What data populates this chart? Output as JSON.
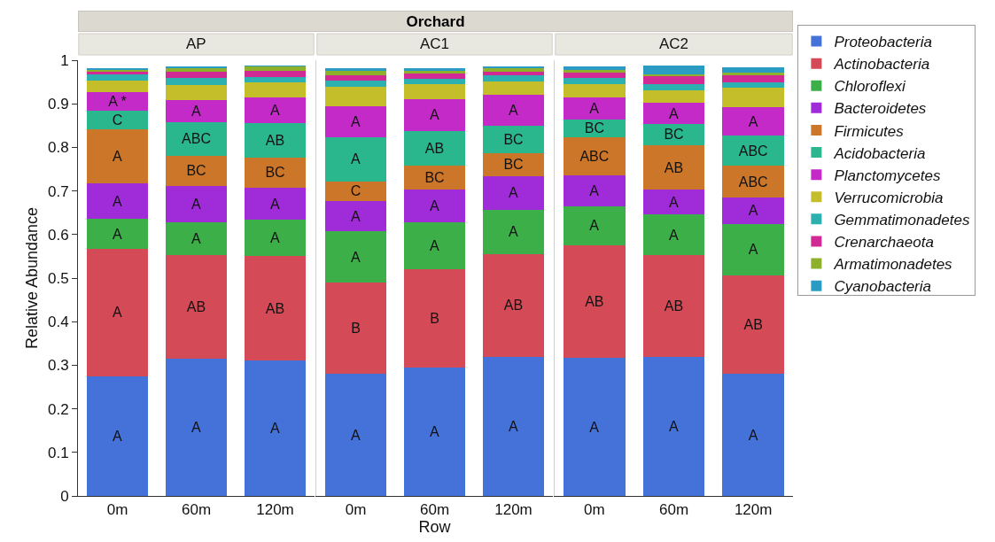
{
  "chart_data": [
    {
      "type": "bar",
      "stacked": true,
      "title": "AP",
      "ylabel": "Relative Abundance",
      "categories": [
        "0m",
        "60m",
        "120m"
      ],
      "ylim": [
        0,
        1
      ],
      "yticks": [
        0,
        0.1,
        0.2,
        0.3,
        0.4,
        0.5,
        0.6,
        0.7,
        0.8,
        0.9,
        1
      ],
      "legend": false,
      "series": [
        {
          "color": "#4572d9",
          "values": [
            0.275,
            0.316,
            0.31
          ],
          "value_labels": [
            "A",
            "A",
            "A"
          ]
        },
        {
          "color": "#d44a57",
          "values": [
            0.292,
            0.237,
            0.24
          ],
          "value_labels": [
            "A",
            "AB",
            "AB"
          ]
        },
        {
          "color": "#3daf48",
          "values": [
            0.069,
            0.075,
            0.084
          ],
          "value_labels": [
            "A",
            "A",
            "A"
          ]
        },
        {
          "color": "#a02bd8",
          "values": [
            0.081,
            0.083,
            0.073
          ],
          "value_labels": [
            "A",
            "A",
            "A"
          ]
        },
        {
          "color": "#cc7629",
          "values": [
            0.124,
            0.07,
            0.07
          ],
          "value_labels": [
            "A",
            "BC",
            "BC"
          ]
        },
        {
          "color": "#2bb78e",
          "values": [
            0.043,
            0.077,
            0.079
          ],
          "value_labels": [
            "C",
            "ABC",
            "AB"
          ]
        },
        {
          "color": "#c42ac8",
          "values": [
            0.043,
            0.05,
            0.059
          ],
          "value_labels": [
            "A *",
            "A",
            "A"
          ]
        },
        {
          "color": "#c4be2a",
          "values": [
            0.026,
            0.036,
            0.034
          ]
        },
        {
          "color": "#2cb1b0",
          "values": [
            0.014,
            0.015,
            0.012
          ]
        },
        {
          "color": "#d12a95",
          "values": [
            0.006,
            0.015,
            0.015
          ]
        },
        {
          "color": "#8fb02b",
          "values": [
            0.005,
            0.008,
            0.009
          ]
        },
        {
          "color": "#2a9bc2",
          "values": [
            0.004,
            0.004,
            0.003
          ]
        }
      ]
    },
    {
      "type": "bar",
      "stacked": true,
      "title": "AC1",
      "xlabel": "Row",
      "categories": [
        "0m",
        "60m",
        "120m"
      ],
      "ylim": [
        0,
        1
      ],
      "tick_labels": "x",
      "legend": false,
      "annotations": [
        "Orchard"
      ],
      "series": [
        {
          "color": "#4572d9",
          "values": [
            0.28,
            0.295,
            0.32
          ],
          "value_labels": [
            "A",
            "A",
            "A"
          ]
        },
        {
          "color": "#d44a57",
          "values": [
            0.21,
            0.225,
            0.235
          ],
          "value_labels": [
            "B",
            "B",
            "AB"
          ]
        },
        {
          "color": "#3daf48",
          "values": [
            0.117,
            0.108,
            0.102
          ],
          "value_labels": [
            "A",
            "A",
            "A"
          ]
        },
        {
          "color": "#a02bd8",
          "values": [
            0.07,
            0.075,
            0.077
          ],
          "value_labels": [
            "A",
            "A",
            "A"
          ]
        },
        {
          "color": "#cc7629",
          "values": [
            0.045,
            0.055,
            0.053
          ],
          "value_labels": [
            "C",
            "BC",
            "BC"
          ]
        },
        {
          "color": "#2bb78e",
          "values": [
            0.101,
            0.079,
            0.063
          ],
          "value_labels": [
            "A",
            "AB",
            "BC"
          ]
        },
        {
          "color": "#c42ac8",
          "values": [
            0.071,
            0.074,
            0.071
          ],
          "value_labels": [
            "A",
            "A",
            "A"
          ]
        },
        {
          "color": "#c4be2a",
          "values": [
            0.046,
            0.034,
            0.03
          ]
        },
        {
          "color": "#2cb1b0",
          "values": [
            0.013,
            0.012,
            0.014
          ]
        },
        {
          "color": "#d12a95",
          "values": [
            0.012,
            0.013,
            0.009
          ]
        },
        {
          "color": "#8fb02b",
          "values": [
            0.011,
            0.006,
            0.008
          ]
        },
        {
          "color": "#2a9bc2",
          "values": [
            0.006,
            0.006,
            0.004
          ]
        }
      ]
    },
    {
      "type": "bar",
      "stacked": true,
      "title": "AC2",
      "categories": [
        "0m",
        "60m",
        "120m"
      ],
      "ylim": [
        0,
        1
      ],
      "tick_labels": "x",
      "legend": "right",
      "series": [
        {
          "name": "Proteobacteria",
          "color": "#4572d9",
          "values": [
            0.317,
            0.32,
            0.28
          ],
          "value_labels": [
            "A",
            "A",
            "A"
          ]
        },
        {
          "name": "Actinobacteria",
          "color": "#d44a57",
          "values": [
            0.258,
            0.233,
            0.227
          ],
          "value_labels": [
            "AB",
            "AB",
            "AB"
          ]
        },
        {
          "name": "Chloroflexi",
          "color": "#3daf48",
          "values": [
            0.09,
            0.093,
            0.117
          ],
          "value_labels": [
            "A",
            "A",
            "A"
          ]
        },
        {
          "name": "Bacteroidetes",
          "color": "#a02bd8",
          "values": [
            0.071,
            0.057,
            0.061
          ],
          "value_labels": [
            "A",
            "A",
            "A"
          ]
        },
        {
          "name": "Firmicutes",
          "color": "#cc7629",
          "values": [
            0.087,
            0.102,
            0.073
          ],
          "value_labels": [
            "ABC",
            "AB",
            "ABC"
          ]
        },
        {
          "name": "Acidobacteria",
          "color": "#2bb78e",
          "values": [
            0.041,
            0.049,
            0.069
          ],
          "value_labels": [
            "BC",
            "BC",
            "ABC"
          ]
        },
        {
          "name": "Planctomycetes",
          "color": "#c42ac8",
          "values": [
            0.051,
            0.048,
            0.065
          ],
          "value_labels": [
            "A",
            "A",
            "A"
          ]
        },
        {
          "name": "Verrucomicrobia",
          "color": "#c4be2a",
          "values": [
            0.031,
            0.029,
            0.046
          ]
        },
        {
          "name": "Gemmatimonadetes",
          "color": "#2cb1b0",
          "values": [
            0.013,
            0.015,
            0.011
          ]
        },
        {
          "name": "Crenarchaeota",
          "color": "#d12a95",
          "values": [
            0.013,
            0.017,
            0.016
          ]
        },
        {
          "name": "Armatimonadetes",
          "color": "#8fb02b",
          "values": [
            0.006,
            0.004,
            0.007
          ]
        },
        {
          "name": "Cyanobacteria",
          "color": "#2a9bc2",
          "values": [
            0.008,
            0.021,
            0.012
          ]
        }
      ]
    }
  ]
}
